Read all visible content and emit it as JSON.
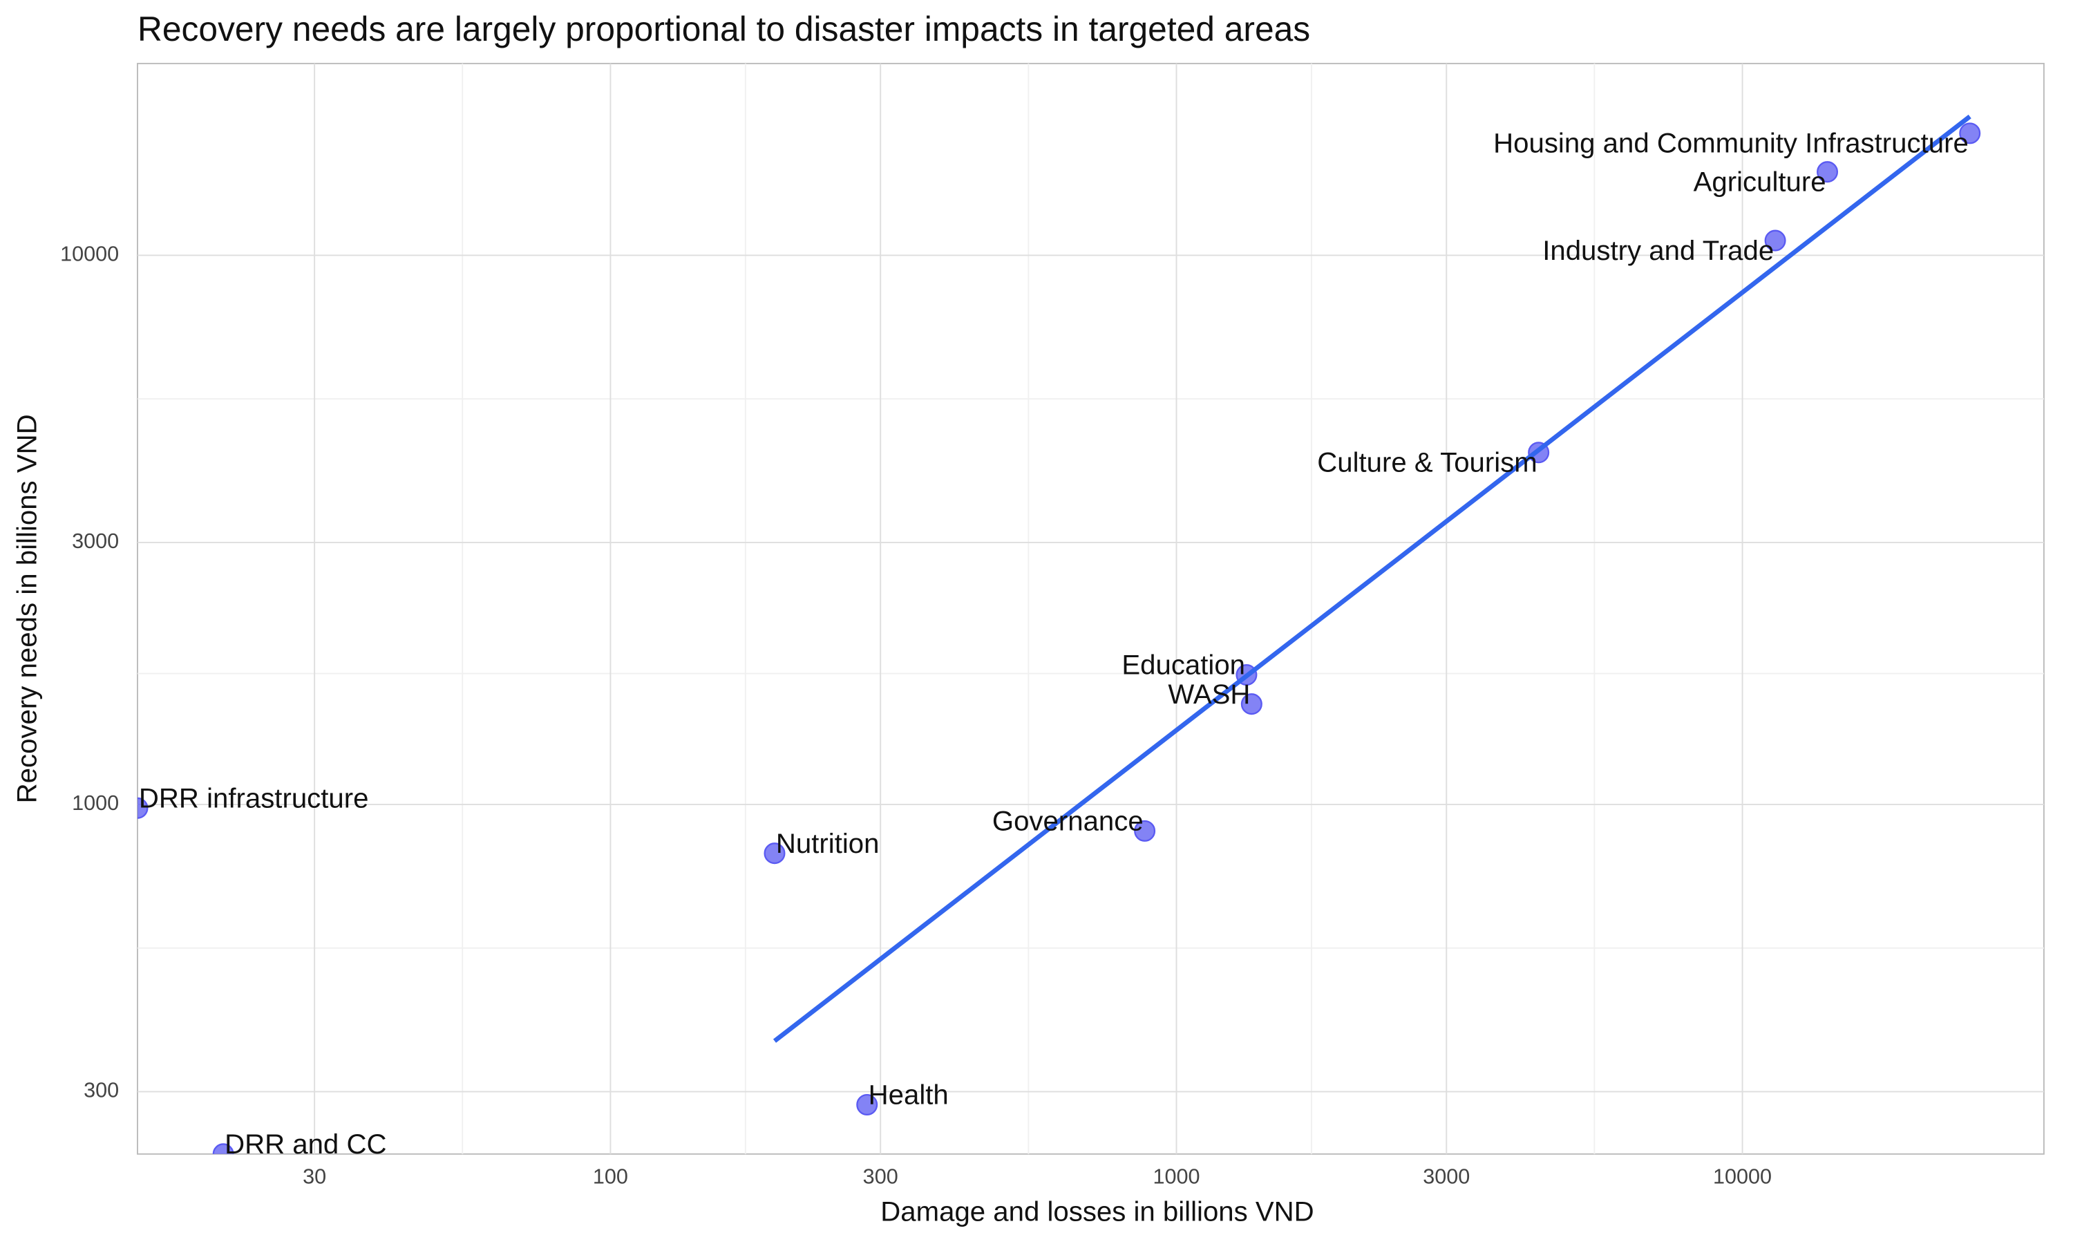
{
  "chart_data": {
    "type": "scatter",
    "title": "Recovery needs are largely proportional to disaster impacts in targeted areas",
    "x_label": "Damage and losses in billions VND",
    "y_label": "Recovery needs in billions VND",
    "x_scale": "log",
    "y_scale": "log",
    "grid": true,
    "xlim": [
      14.6,
      34100
    ],
    "ylim": [
      231,
      22350
    ],
    "xticks": [
      30,
      100,
      300,
      1000,
      3000,
      10000
    ],
    "yticks": [
      300,
      1000,
      3000,
      10000
    ],
    "series": [
      {
        "color": "#5a5af2",
        "labels": [
          "DRR infrastructure",
          "DRR and CC",
          "Nutrition",
          "Health",
          "Governance",
          "Education",
          "WASH",
          "Culture & Tourism",
          "Industry and Trade",
          "Agriculture",
          "Housing and Community Infrastructure"
        ],
        "x": [
          14.6,
          20.7,
          195,
          284,
          879,
          1330,
          1358,
          4365,
          11430,
          14130,
          25230
        ],
        "values": [
          985,
          231,
          815,
          284,
          895,
          1722,
          1524,
          4375,
          10640,
          14190,
          16680
        ]
      }
    ],
    "trendline": {
      "color": "#3366ee",
      "x": [
        195,
        25230
      ],
      "values": [
        371,
        17900
      ]
    }
  }
}
